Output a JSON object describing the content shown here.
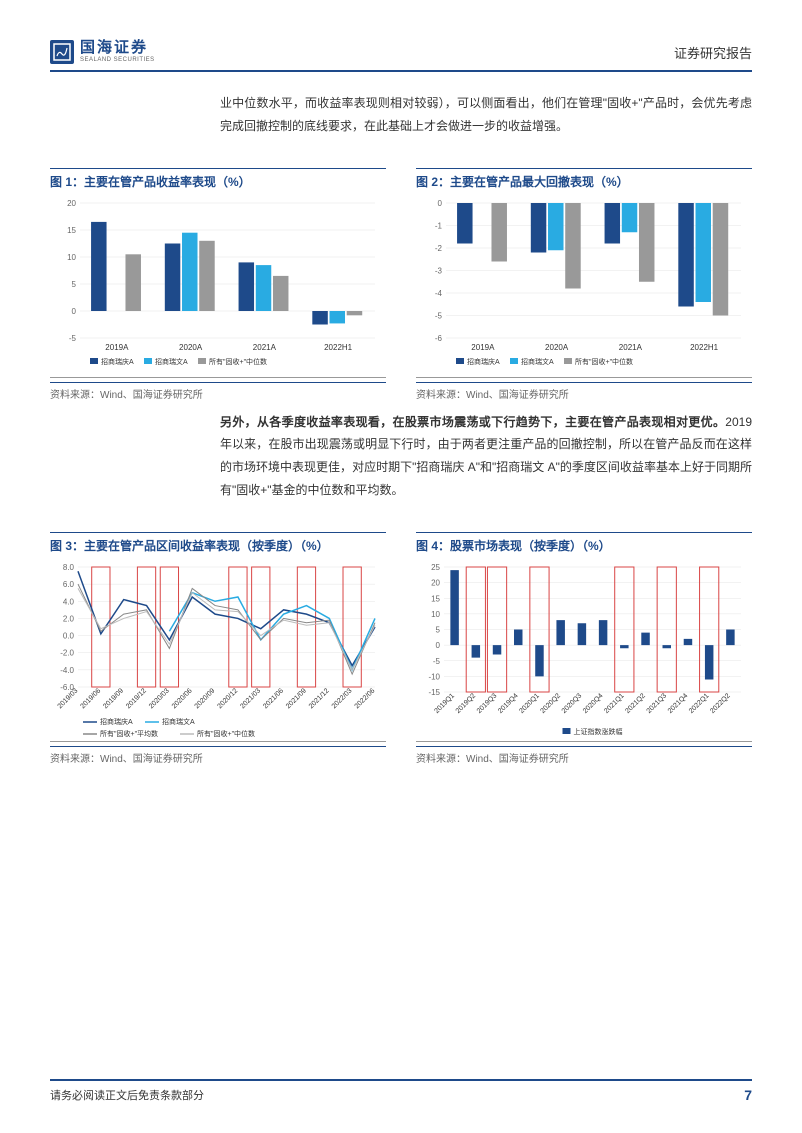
{
  "header": {
    "logo_cn": "国海证券",
    "logo_en": "SEALAND SECURITIES",
    "right": "证券研究报告"
  },
  "para1": "业中位数水平，而收益率表现则相对较弱），可以侧面看出，他们在管理\"固收+\"产品时，会优先考虑完成回撤控制的底线要求，在此基础上才会做进一步的收益增强。",
  "para2_bold": "另外，从各季度收益率表现看，在股票市场震荡或下行趋势下，主要在管产品表现相对更优。",
  "para2_rest": "2019 年以来，在股市出现震荡或明显下行时，由于两者更注重产品的回撤控制，所以在管产品反而在这样的市场环境中表现更佳，对应时期下\"招商瑞庆 A\"和\"招商瑞文 A\"的季度区间收益率基本上好于同期所有\"固收+\"基金的中位数和平均数。",
  "chart1": {
    "title": "图 1：主要在管产品收益率表现（%）",
    "source": "资料来源：Wind、国海证券研究所",
    "categories": [
      "2019A",
      "2020A",
      "2021A",
      "2022H1"
    ],
    "series": [
      {
        "name": "招商瑞庆A",
        "color": "#1e4a8a",
        "values": [
          16.5,
          12.5,
          9,
          -2.5
        ]
      },
      {
        "name": "招商瑞文A",
        "color": "#29abe2",
        "values": [
          null,
          14.5,
          8.5,
          -2.3
        ]
      },
      {
        "name": "所有\"固收+\"中位数",
        "color": "#999999",
        "values": [
          10.5,
          13,
          6.5,
          -0.8
        ]
      }
    ],
    "ylim": [
      -5,
      20
    ],
    "ytick_step": 5,
    "grid_color": "#e5e5e5",
    "background_color": "#ffffff"
  },
  "chart2": {
    "title": "图 2：主要在管产品最大回撤表现（%）",
    "source": "资料来源：Wind、国海证券研究所",
    "categories": [
      "2019A",
      "2020A",
      "2021A",
      "2022H1"
    ],
    "series": [
      {
        "name": "招商瑞庆A",
        "color": "#1e4a8a",
        "values": [
          -1.8,
          -2.2,
          -1.8,
          -4.6
        ]
      },
      {
        "name": "招商瑞文A",
        "color": "#29abe2",
        "values": [
          null,
          -2.1,
          -1.3,
          -4.4
        ]
      },
      {
        "name": "所有\"固收+\"中位数",
        "color": "#999999",
        "values": [
          -2.6,
          -3.8,
          -3.5,
          -5.0
        ]
      }
    ],
    "ylim": [
      -6,
      0
    ],
    "ytick_step": 1,
    "grid_color": "#e5e5e5",
    "background_color": "#ffffff"
  },
  "chart3": {
    "title": "图 3：主要在管产品区间收益率表现（按季度）（%）",
    "source": "资料来源：Wind、国海证券研究所",
    "type": "line",
    "categories": [
      "2019/03",
      "2019/06",
      "2019/09",
      "2019/12",
      "2020/03",
      "2020/06",
      "2020/09",
      "2020/12",
      "2021/03",
      "2021/06",
      "2021/09",
      "2021/12",
      "2022/03",
      "2022/06"
    ],
    "series": [
      {
        "name": "招商瑞庆A",
        "color": "#1e4a8a",
        "width": 1.5,
        "values": [
          7.5,
          0.2,
          4.2,
          3.5,
          -0.5,
          4.5,
          2.5,
          2.0,
          0.8,
          3.0,
          2.5,
          1.5,
          -3.5,
          1.0
        ]
      },
      {
        "name": "招商瑞文A",
        "color": "#29abe2",
        "width": 1.5,
        "values": [
          null,
          null,
          null,
          null,
          0.5,
          5.0,
          4.0,
          4.5,
          -0.5,
          2.5,
          3.5,
          2.0,
          -4.0,
          2.0
        ]
      },
      {
        "name": "所有\"固收+\"平均数",
        "color": "#888888",
        "width": 1,
        "values": [
          6.0,
          0.5,
          2.5,
          3.0,
          -1.5,
          5.5,
          3.5,
          3.0,
          -0.5,
          2.0,
          1.5,
          1.8,
          -4.5,
          1.5
        ]
      },
      {
        "name": "所有\"固收+\"中位数",
        "color": "#bbbbbb",
        "width": 1,
        "values": [
          5.5,
          0.8,
          2.0,
          2.8,
          -1.0,
          5.0,
          3.0,
          2.8,
          0.0,
          1.8,
          1.2,
          1.5,
          -4.0,
          1.2
        ]
      }
    ],
    "highlight_boxes": [
      1,
      3,
      4,
      7,
      8,
      10,
      12
    ],
    "ylim": [
      -6,
      8
    ],
    "ytick_step": 2,
    "grid_color": "#e5e5e5",
    "background_color": "#ffffff",
    "box_color": "#d94545"
  },
  "chart4": {
    "title": "图 4：股票市场表现（按季度）（%）",
    "source": "资料来源：Wind、国海证券研究所",
    "type": "bar",
    "categories": [
      "2019Q1",
      "2019Q2",
      "2019Q3",
      "2019Q4",
      "2020Q1",
      "2020Q2",
      "2020Q3",
      "2020Q4",
      "2021Q1",
      "2021Q2",
      "2021Q3",
      "2021Q4",
      "2022Q1",
      "2022Q2"
    ],
    "series": [
      {
        "name": "上证指数涨跌幅",
        "color": "#1e4a8a",
        "values": [
          24,
          -4,
          -3,
          5,
          -10,
          8,
          7,
          8,
          -1,
          4,
          -1,
          2,
          -11,
          5
        ]
      }
    ],
    "highlight_boxes": [
      1,
      2,
      4,
      8,
      10,
      12
    ],
    "ylim": [
      -15,
      25
    ],
    "ytick_step": 5,
    "grid_color": "#e5e5e5",
    "background_color": "#ffffff",
    "box_color": "#d94545"
  },
  "footer": {
    "left": "请务必阅读正文后免责条款部分",
    "page": "7"
  }
}
